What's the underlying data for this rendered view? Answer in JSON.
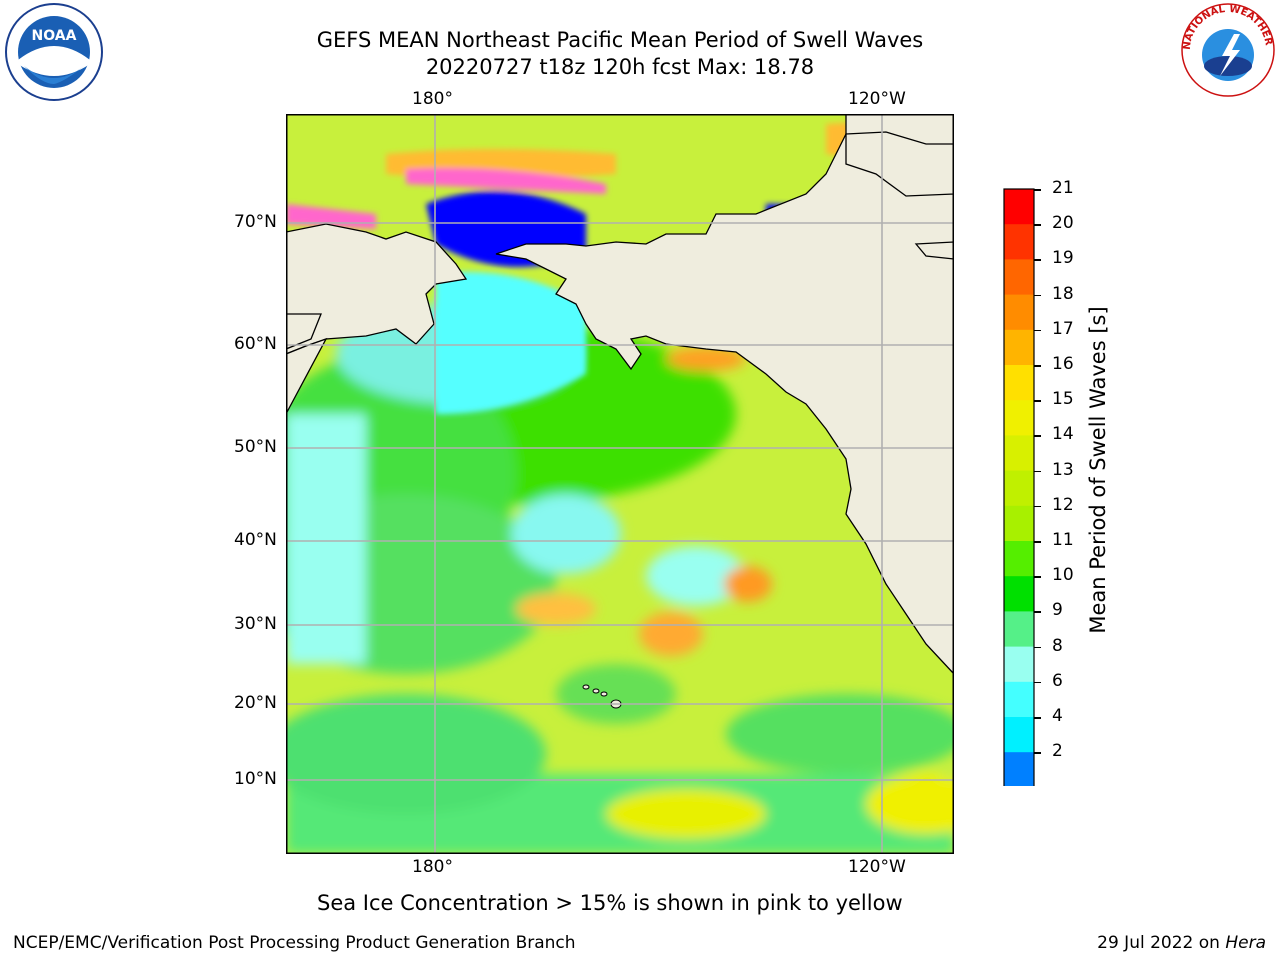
{
  "header": {
    "title_line1": "GEFS MEAN Northeast Pacific Mean Period of Swell Waves",
    "title_line2": "20220727 t18z 120h fcst   Max: 18.78"
  },
  "logos": {
    "left": "NOAA",
    "right": "NATIONAL WEATHER SERVICE"
  },
  "map": {
    "lon_ticks": [
      "180°",
      "120°W"
    ],
    "lat_ticks": [
      "70°N",
      "60°N",
      "50°N",
      "40°N",
      "30°N",
      "20°N",
      "10°N"
    ],
    "colors": {
      "land": "#efedde",
      "coast": "#000000",
      "grid": "#b0b0b0",
      "ocean_base": "#c8f03c"
    }
  },
  "colorbar": {
    "label": "Mean Period of Swell Waves [s]",
    "ticks": [
      "21",
      "20",
      "19",
      "18",
      "17",
      "16",
      "15",
      "14",
      "13",
      "12",
      "11",
      "10",
      "9",
      "8",
      "6",
      "4",
      "2"
    ],
    "colors": [
      "#ff0000",
      "#ff3300",
      "#ff6600",
      "#ff8c00",
      "#ffb400",
      "#ffe000",
      "#f0f000",
      "#d8f000",
      "#c0f000",
      "#a8f000",
      "#55ee00",
      "#00e000",
      "#55f088",
      "#99fff0",
      "#44ffff",
      "#00f0ff",
      "#0080ff"
    ],
    "under_color": "#0000ff"
  },
  "caption": "Sea Ice Concentration > 15% is shown in pink to yellow",
  "footer": {
    "left": "NCEP/EMC/Verification Post Processing Product Generation Branch",
    "date": "29 Jul 2022 on ",
    "machine": "Hera"
  }
}
